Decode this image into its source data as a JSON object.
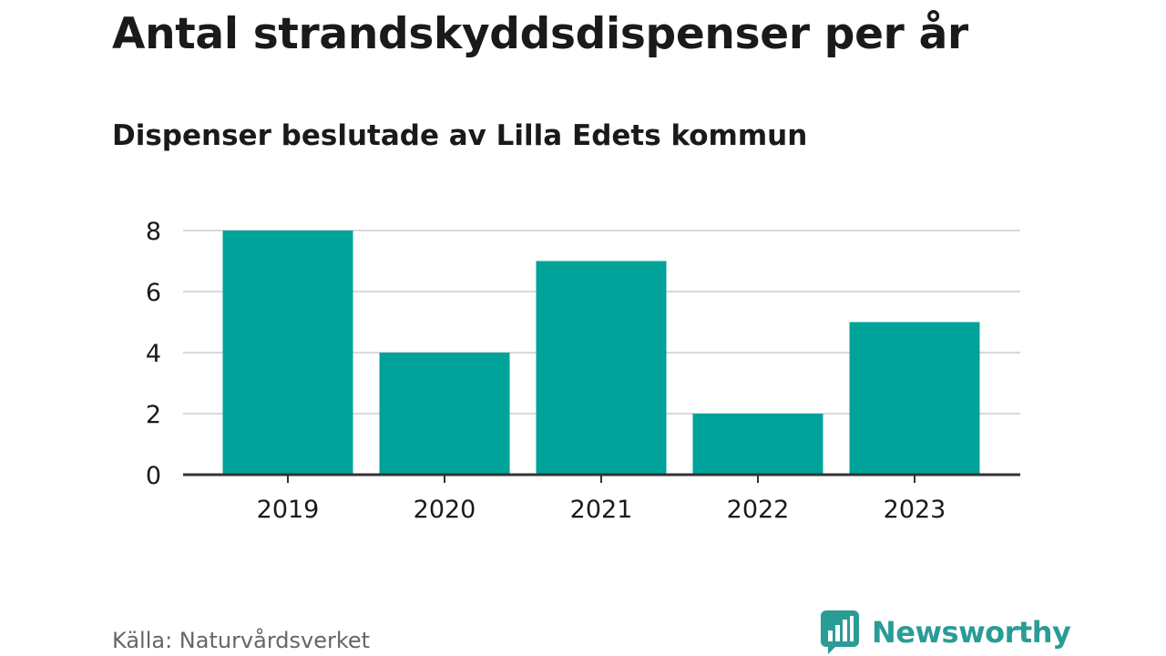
{
  "title": "Antal strandskyddsdispenser per år",
  "subtitle": "Dispenser beslutade av Lilla Edets kommun",
  "source": "Källa: Naturvårdsverket",
  "brand": {
    "name": "Newsworthy",
    "icon": "newsworthy-logo-icon",
    "color": "#2a9c96"
  },
  "colors": {
    "bar": "#00a39a",
    "grid": "#d9d9d9",
    "axis": "#333333",
    "text": "#1a1a1a"
  },
  "chart_data": {
    "type": "bar",
    "title": "Antal strandskyddsdispenser per år",
    "subtitle": "Dispenser beslutade av Lilla Edets kommun",
    "categories": [
      "2019",
      "2020",
      "2021",
      "2022",
      "2023"
    ],
    "values": [
      8,
      4,
      7,
      2,
      5
    ],
    "xlabel": "",
    "ylabel": "",
    "ylim": [
      0,
      8
    ],
    "yticks": [
      "0",
      "2",
      "4",
      "6",
      "8"
    ],
    "grid": true,
    "legend": "none"
  }
}
